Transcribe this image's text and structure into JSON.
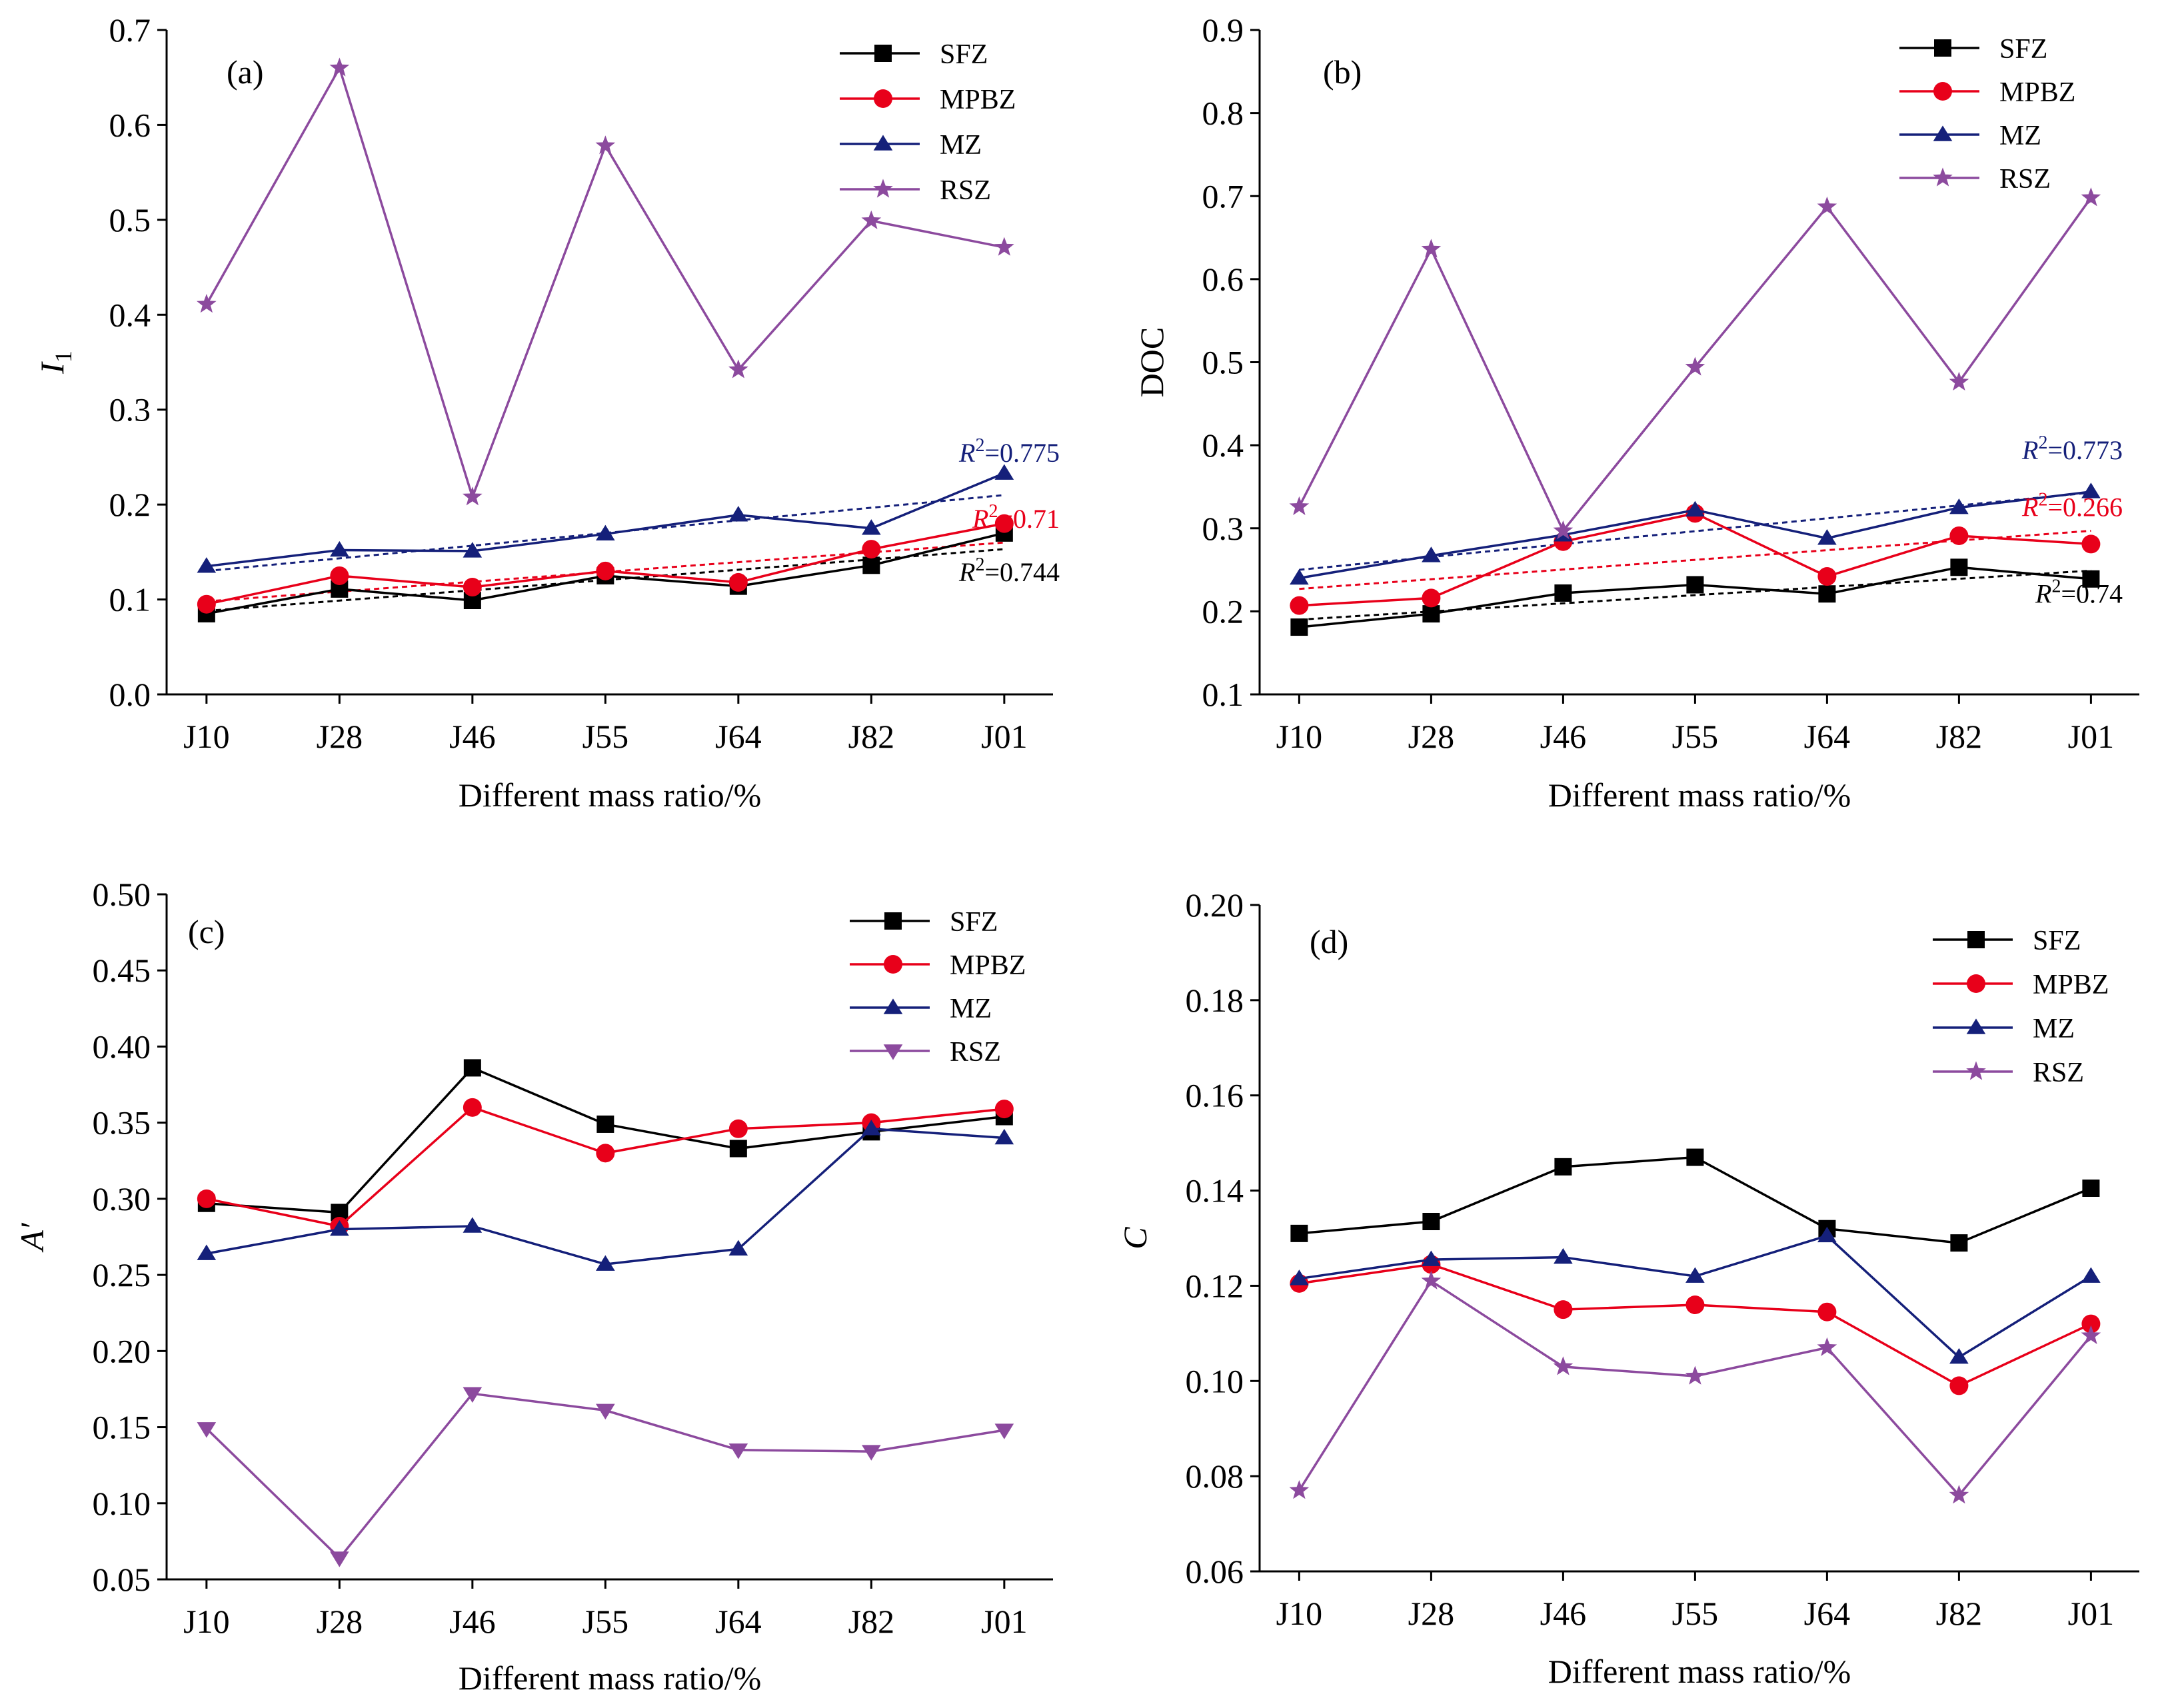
{
  "colors": {
    "SFZ": "#000000",
    "MPBZ": "#e8001a",
    "MZ": "#15207a",
    "RSZ": "#8c4a9e"
  },
  "chart_data": [
    {
      "type": "line",
      "panel": "(a)",
      "ylabel": "I",
      "ylabel_sub": "1",
      "xlabel": "Different mass ratio/%",
      "categories": [
        "J10",
        "J28",
        "J46",
        "J55",
        "J64",
        "J82",
        "J01"
      ],
      "ylim": [
        0.0,
        0.7
      ],
      "yticks": [
        "0.0",
        "0.1",
        "0.2",
        "0.3",
        "0.4",
        "0.5",
        "0.6",
        "0.7"
      ],
      "legend_position": "top-right",
      "series": [
        {
          "name": "SFZ",
          "marker": "square",
          "values": [
            0.085,
            0.111,
            0.099,
            0.125,
            0.114,
            0.136,
            0.17
          ]
        },
        {
          "name": "MPBZ",
          "marker": "circle",
          "values": [
            0.095,
            0.125,
            0.113,
            0.13,
            0.118,
            0.153,
            0.18
          ]
        },
        {
          "name": "MZ",
          "marker": "triangle-up",
          "values": [
            0.135,
            0.152,
            0.151,
            0.169,
            0.189,
            0.175,
            0.233
          ]
        },
        {
          "name": "RSZ",
          "marker": "star",
          "values": [
            0.411,
            0.66,
            0.208,
            0.578,
            0.342,
            0.499,
            0.471
          ]
        }
      ],
      "trendlines": [
        {
          "series": "SFZ",
          "from": 0.088,
          "to": 0.153,
          "r2_text": "0.744"
        },
        {
          "series": "MPBZ",
          "from": 0.098,
          "to": 0.16,
          "r2_text": "0.71"
        },
        {
          "series": "MZ",
          "from": 0.13,
          "to": 0.21,
          "r2_text": "0.775"
        }
      ]
    },
    {
      "type": "line",
      "panel": "(b)",
      "ylabel": "DOC",
      "xlabel": "Different mass ratio/%",
      "categories": [
        "J10",
        "J28",
        "J46",
        "J55",
        "J64",
        "J82",
        "J01"
      ],
      "ylim": [
        0.1,
        0.9
      ],
      "yticks": [
        "0.1",
        "0.2",
        "0.3",
        "0.4",
        "0.5",
        "0.6",
        "0.7",
        "0.8",
        "0.9"
      ],
      "legend_position": "top-right",
      "series": [
        {
          "name": "SFZ",
          "marker": "square",
          "values": [
            0.181,
            0.197,
            0.222,
            0.232,
            0.221,
            0.253,
            0.239
          ]
        },
        {
          "name": "MPBZ",
          "marker": "circle",
          "values": [
            0.207,
            0.216,
            0.284,
            0.318,
            0.242,
            0.291,
            0.281
          ]
        },
        {
          "name": "MZ",
          "marker": "triangle-up",
          "values": [
            0.24,
            0.267,
            0.292,
            0.322,
            0.288,
            0.325,
            0.344
          ]
        },
        {
          "name": "RSZ",
          "marker": "star",
          "values": [
            0.326,
            0.636,
            0.297,
            0.494,
            0.687,
            0.476,
            0.698
          ]
        }
      ],
      "trendlines": [
        {
          "series": "SFZ",
          "from": 0.19,
          "to": 0.249,
          "r2_text": "0.74"
        },
        {
          "series": "MPBZ",
          "from": 0.227,
          "to": 0.297,
          "r2_text": "0.266"
        },
        {
          "series": "MZ",
          "from": 0.25,
          "to": 0.343,
          "r2_text": "0.773"
        }
      ]
    },
    {
      "type": "line",
      "panel": "(c)",
      "ylabel": "A′",
      "xlabel": "Different mass ratio/%",
      "categories": [
        "J10",
        "J28",
        "J46",
        "J55",
        "J64",
        "J82",
        "J01"
      ],
      "ylim": [
        0.05,
        0.5
      ],
      "yticks": [
        "0.05",
        "0.10",
        "0.15",
        "0.20",
        "0.25",
        "0.30",
        "0.35",
        "0.40",
        "0.45",
        "0.50"
      ],
      "legend_position": "top-right",
      "series": [
        {
          "name": "SFZ",
          "marker": "square",
          "values": [
            0.297,
            0.291,
            0.386,
            0.349,
            0.333,
            0.344,
            0.354
          ]
        },
        {
          "name": "MPBZ",
          "marker": "circle",
          "values": [
            0.3,
            0.282,
            0.36,
            0.33,
            0.346,
            0.35,
            0.359
          ]
        },
        {
          "name": "MZ",
          "marker": "triangle-up",
          "values": [
            0.264,
            0.28,
            0.282,
            0.257,
            0.267,
            0.346,
            0.34
          ]
        },
        {
          "name": "RSZ",
          "marker": "triangle-down",
          "values": [
            0.149,
            0.064,
            0.172,
            0.161,
            0.135,
            0.134,
            0.148
          ]
        }
      ]
    },
    {
      "type": "line",
      "panel": "(d)",
      "ylabel": "C",
      "xlabel": "Different mass ratio/%",
      "categories": [
        "J10",
        "J28",
        "J46",
        "J55",
        "J64",
        "J82",
        "J01"
      ],
      "ylim": [
        0.06,
        0.2
      ],
      "yticks": [
        "0.06",
        "0.08",
        "0.10",
        "0.12",
        "0.14",
        "0.16",
        "0.18",
        "0.20"
      ],
      "legend_position": "top-right",
      "series": [
        {
          "name": "SFZ",
          "marker": "square",
          "values": [
            0.131,
            0.1335,
            0.145,
            0.147,
            0.132,
            0.129,
            0.1405
          ]
        },
        {
          "name": "MPBZ",
          "marker": "circle",
          "values": [
            0.1205,
            0.1245,
            0.115,
            0.116,
            0.1145,
            0.099,
            0.112
          ]
        },
        {
          "name": "MZ",
          "marker": "triangle-up",
          "values": [
            0.1215,
            0.1255,
            0.126,
            0.122,
            0.1305,
            0.105,
            0.122
          ]
        },
        {
          "name": "RSZ",
          "marker": "star",
          "values": [
            0.077,
            0.121,
            0.103,
            0.101,
            0.107,
            0.076,
            0.1095
          ]
        }
      ]
    }
  ]
}
